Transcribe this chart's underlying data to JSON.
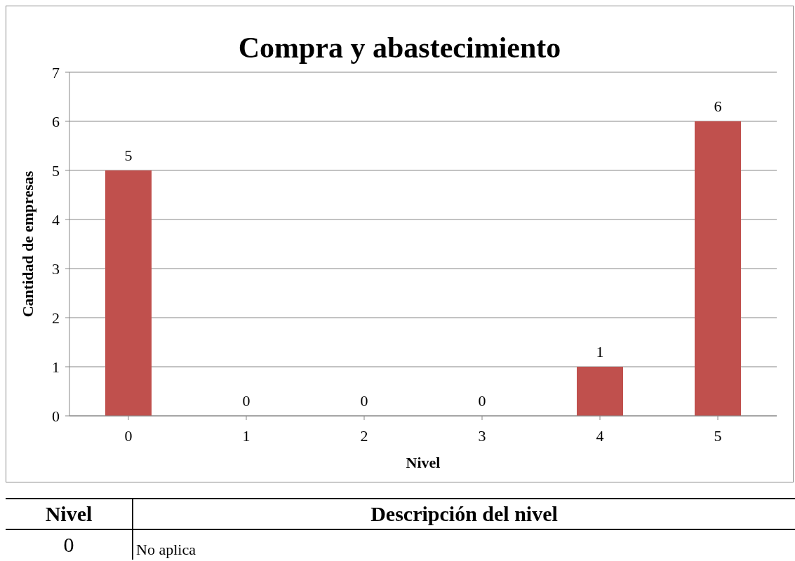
{
  "chart_data": {
    "type": "bar",
    "title": "Compra y abastecimiento",
    "xlabel": "Nivel",
    "ylabel": "Cantidad de empresas",
    "categories": [
      "0",
      "1",
      "2",
      "3",
      "4",
      "5"
    ],
    "values": [
      5,
      0,
      0,
      0,
      1,
      6
    ],
    "color": "#c0504d",
    "ylim": [
      0,
      7
    ],
    "yticks": [
      0,
      1,
      2,
      3,
      4,
      5,
      6,
      7
    ],
    "grid": "y",
    "data_labels": true,
    "annotations": [
      "Nivel",
      "Descripción del nivel",
      "0",
      "No aplica"
    ]
  }
}
